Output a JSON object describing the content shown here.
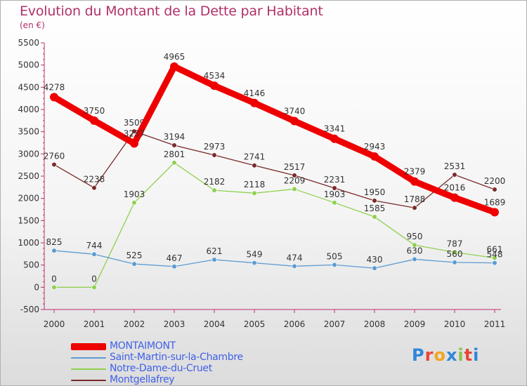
{
  "header": {
    "title": "Evolution du Montant de la Dette par Habitant",
    "subtitle": "(en €)"
  },
  "logo": {
    "text": "Proxiti",
    "colors": [
      "#2e86d9",
      "#e8443a",
      "#f2a51c",
      "#2e86d9",
      "#8bc34a",
      "#e8443a",
      "#2e86d9"
    ]
  },
  "chart_data": {
    "type": "line",
    "title": "Evolution du Montant de la Dette par Habitant",
    "subtitle": "(en €)",
    "x": [
      "2000",
      "2001",
      "2002",
      "2003",
      "2004",
      "2005",
      "2006",
      "2007",
      "2008",
      "2009",
      "2010",
      "2011"
    ],
    "ylim": [
      -500,
      5500
    ],
    "yticks": [
      "-500",
      "0",
      "500",
      "1000",
      "1500",
      "2000",
      "2500",
      "3000",
      "3500",
      "4000",
      "4500",
      "5000",
      "5500"
    ],
    "grid": false,
    "legend_position": "bottom-left",
    "series": [
      {
        "name": "Montgellafrey",
        "color": "#7a2a2a",
        "values": [
          2760,
          2238,
          3509,
          3194,
          2973,
          2741,
          2517,
          2231,
          1950,
          1788,
          2531,
          2200
        ],
        "labels": [
          "2760",
          "2238",
          "3509",
          "3194",
          "2973",
          "2741",
          "2517",
          "2231",
          "1950",
          "1788",
          "2531",
          "2200"
        ]
      },
      {
        "name": "Notre-Dame-du-Cruet",
        "color": "#8fd14f",
        "values": [
          0,
          0,
          1903,
          2801,
          2182,
          2118,
          2209,
          1903,
          1585,
          950,
          787,
          661
        ],
        "labels": [
          "0",
          "0",
          "1903",
          "2801",
          "2182",
          "2118",
          "2209",
          "1903",
          "1585",
          "950",
          "787",
          "661"
        ]
      },
      {
        "name": "Saint-Martin-sur-la-Chambre",
        "color": "#5d9bd1",
        "values": [
          825,
          744,
          525,
          467,
          621,
          549,
          474,
          505,
          430,
          630,
          560,
          548
        ],
        "labels": [
          "825",
          "744",
          "525",
          "467",
          "621",
          "549",
          "474",
          "505",
          "430",
          "630",
          "560",
          "548"
        ]
      },
      {
        "name": "MONTAIMONT",
        "color": "#ee0000",
        "values": [
          4278,
          3750,
          3237,
          4965,
          4534,
          4146,
          3740,
          3341,
          2943,
          2379,
          2016,
          1689
        ],
        "labels": [
          "4278",
          "3750",
          "3237",
          "4965",
          "4534",
          "4146",
          "3740",
          "3341",
          "2943",
          "2379",
          "2016",
          "1689"
        ]
      }
    ]
  },
  "legend": [
    {
      "name": "MONTAIMONT",
      "color": "#ee0000",
      "weight": "thick"
    },
    {
      "name": "Saint-Martin-sur-la-Chambre",
      "color": "#5d9bd1",
      "weight": "thin"
    },
    {
      "name": "Notre-Dame-du-Cruet",
      "color": "#8fd14f",
      "weight": "thin"
    },
    {
      "name": "Montgellafrey",
      "color": "#7a2a2a",
      "weight": "thin"
    }
  ]
}
